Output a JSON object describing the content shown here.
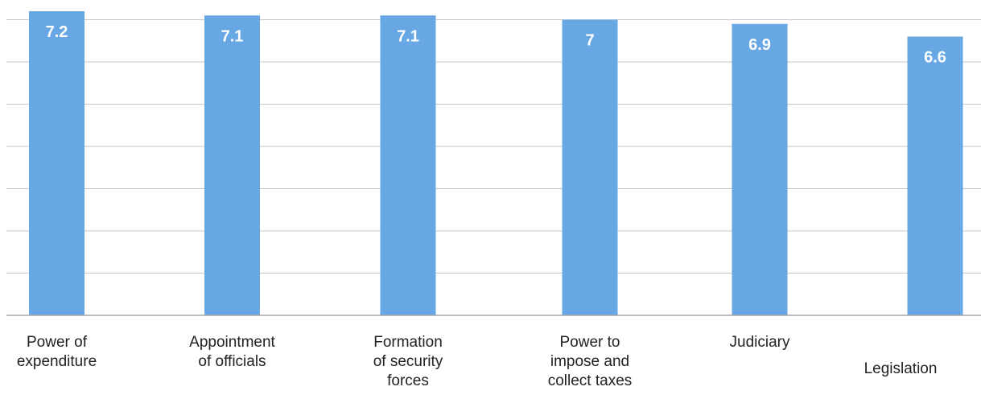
{
  "chart_data": {
    "type": "bar",
    "categories": [
      "Power of\nexpenditure",
      "Appointment\nof officials",
      "Formation\nof security\nforces",
      "Power to\nimpose and\ncollect taxes",
      "Judiciary",
      "Legislation"
    ],
    "values": [
      7.2,
      7.1,
      7.1,
      7,
      6.9,
      6.6
    ],
    "value_labels": [
      "7.2",
      "7.1",
      "7.1",
      "7",
      "6.9",
      "6.6"
    ],
    "ylim": [
      0,
      7.5
    ],
    "gridline_step": 1,
    "grid": true,
    "title": "",
    "xlabel": "",
    "ylabel": "",
    "colors": {
      "bar": "#67a7e3",
      "grid": "#c6c6c6",
      "axis": "#a6a6a6",
      "value_label": "#ffffff"
    }
  }
}
